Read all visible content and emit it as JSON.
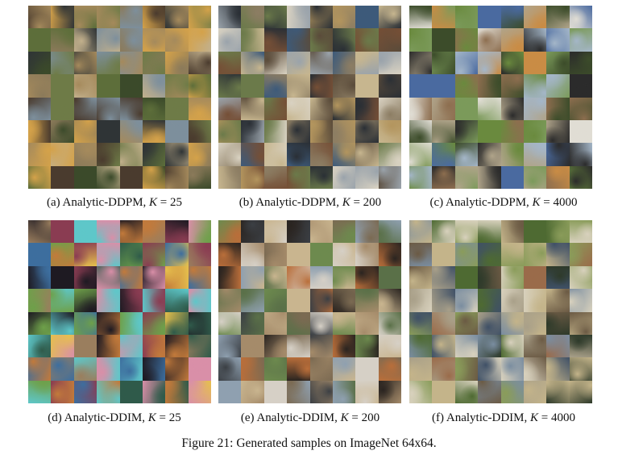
{
  "panels": [
    {
      "id": "a",
      "label": "(a) Analytic-DDPM, ",
      "k_var": "K",
      "k_eq": " = 25",
      "palette": [
        "#3b4a2a",
        "#6e7b47",
        "#8b7a5a",
        "#2f3436",
        "#a58a5c",
        "#5d6e3a",
        "#c2b08c",
        "#4a3b2e",
        "#7d8f9c",
        "#d4a24a"
      ]
    },
    {
      "id": "b",
      "label": "(b) Analytic-DDPM, ",
      "k_var": "K",
      "k_eq": " = 200",
      "palette": [
        "#5a4b3a",
        "#8c7d63",
        "#2a2f35",
        "#b3955e",
        "#6b7a4a",
        "#9aa3ab",
        "#3d5a7a",
        "#c7b68f",
        "#754f36",
        "#d9d2c2"
      ]
    },
    {
      "id": "c",
      "label": "(c) Analytic-DDPM, ",
      "k_var": "K",
      "k_eq": " = 4000",
      "palette": [
        "#6a8a3e",
        "#3c4c2a",
        "#b0a48a",
        "#e0ddd4",
        "#4a6aa0",
        "#8d6e4f",
        "#2b2b2b",
        "#c98c45",
        "#7b9a5a",
        "#a4b6c8"
      ]
    },
    {
      "id": "d",
      "label": "(d) Analytic-DDIM, ",
      "k_var": "K",
      "k_eq": " = 25",
      "palette": [
        "#1e1a22",
        "#c27a3b",
        "#3d6e9e",
        "#6ea04a",
        "#e6c04d",
        "#8a3c52",
        "#2f5a4a",
        "#d98fa8",
        "#5ec7c9",
        "#9a7e5e"
      ]
    },
    {
      "id": "e",
      "label": "(e) Analytic-DDIM, ",
      "k_var": "K",
      "k_eq": " = 200",
      "palette": [
        "#7b6a52",
        "#3b3f44",
        "#a58b6a",
        "#d6d0c6",
        "#5a7048",
        "#2a2420",
        "#8fa0b0",
        "#b96e3a",
        "#6d8a4e",
        "#c9b58f"
      ]
    },
    {
      "id": "f",
      "label": "(f) Analytic-DDIM, ",
      "k_var": "K",
      "k_eq": " = 4000",
      "palette": [
        "#4e6a32",
        "#8a9c5a",
        "#6b5a44",
        "#a9a089",
        "#2e3a2a",
        "#c4b48a",
        "#7a8da0",
        "#9a6b4a",
        "#d8d1bd",
        "#3f5066"
      ]
    }
  ],
  "figure_caption": "Figure 21: Generated samples on ImageNet 64x64."
}
